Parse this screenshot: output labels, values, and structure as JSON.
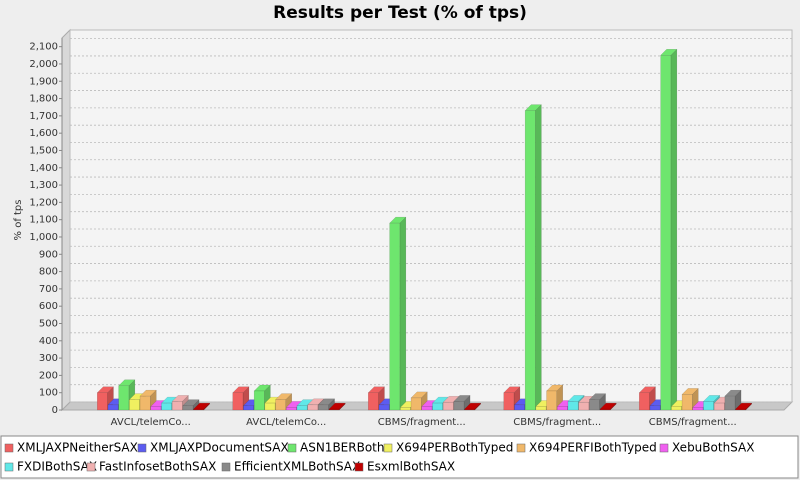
{
  "chart_data": {
    "type": "bar3d",
    "title": "Results per Test (% of tps)",
    "y_label": "% of tps",
    "categories": [
      "AVCL/telemCo...",
      "AVCL/telemCo...",
      "CBMS/fragment...",
      "CBMS/fragment...",
      "CBMS/fragment..."
    ],
    "series": [
      {
        "name": "XMLJAXPNeitherSAX",
        "color": "#f06060",
        "values": [
          100,
          100,
          100,
          100,
          100
        ]
      },
      {
        "name": "XMLJAXPDocumentSAX",
        "color": "#5c5cf0",
        "values": [
          30,
          25,
          30,
          30,
          25
        ]
      },
      {
        "name": "ASN1BERBoth",
        "color": "#6ee66e",
        "values": [
          140,
          110,
          1080,
          1730,
          2050
        ]
      },
      {
        "name": "X694PERBothTyped",
        "color": "#f0f060",
        "values": [
          60,
          40,
          15,
          20,
          20
        ]
      },
      {
        "name": "X694PERFIBothTyped",
        "color": "#f0b86a",
        "values": [
          80,
          60,
          70,
          110,
          90
        ]
      },
      {
        "name": "XebuBothSAX",
        "color": "#f060f0",
        "values": [
          20,
          15,
          20,
          20,
          15
        ]
      },
      {
        "name": "FXDIBothSAX",
        "color": "#60e8e8",
        "values": [
          40,
          25,
          40,
          50,
          50
        ]
      },
      {
        "name": "FastInfosetBothSAX",
        "color": "#f0b0b0",
        "values": [
          50,
          30,
          45,
          45,
          40
        ]
      },
      {
        "name": "EfficientXMLBothSAX",
        "color": "#8a8a8a",
        "values": [
          25,
          30,
          50,
          60,
          80
        ]
      },
      {
        "name": "EsxmlBothSAX",
        "color": "#c00000",
        "values": [
          5,
          5,
          5,
          5,
          5
        ]
      }
    ],
    "ylim": [
      0,
      2150
    ],
    "yticks": [
      0,
      100,
      200,
      300,
      400,
      500,
      600,
      700,
      800,
      900,
      {
        "value": 1000,
        "label": "1,000"
      },
      {
        "value": 1100,
        "label": "1,100"
      },
      {
        "value": 1200,
        "label": "1,200"
      },
      {
        "value": 1300,
        "label": "1,300"
      },
      {
        "value": 1400,
        "label": "1,400"
      },
      {
        "value": 1500,
        "label": "1,500"
      },
      {
        "value": 1600,
        "label": "1,600"
      },
      {
        "value": 1700,
        "label": "1,700"
      },
      {
        "value": 1800,
        "label": "1,800"
      },
      {
        "value": 1900,
        "label": "1,900"
      },
      {
        "value": 2000,
        "label": "2,000"
      },
      {
        "value": 2100,
        "label": "2,100"
      }
    ],
    "grid": true
  }
}
